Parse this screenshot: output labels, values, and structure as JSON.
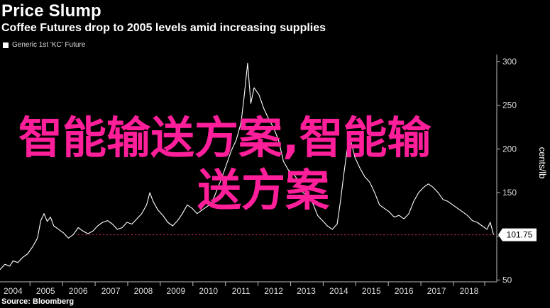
{
  "header": {
    "title": "Price Slump",
    "subtitle": "Coffee Futures drop to 2005 levels amid increasing supplies"
  },
  "source": "Source: Bloomberg",
  "watermark": {
    "line1": "智能输送方案,智能输",
    "line2": "送方案",
    "color": "#ff1f9a"
  },
  "chart_data": {
    "type": "line",
    "legend": {
      "position": "top-left",
      "entries": [
        "Generic 1st 'KC' Future"
      ]
    },
    "ylabel": "cents/lb",
    "ylim": [
      48,
      308
    ],
    "y_ticks": [
      50,
      100,
      150,
      200,
      250,
      300
    ],
    "y_tick_labels": [
      "50",
      "100",
      "150",
      "200",
      "250",
      "300"
    ],
    "x_ticks": [
      2004,
      2005,
      2006,
      2007,
      2008,
      2009,
      2010,
      2011,
      2012,
      2013,
      2014,
      2015,
      2016,
      2017,
      2018
    ],
    "x_tick_labels": [
      "2004",
      "2005",
      "2006",
      "2007",
      "2008",
      "2009",
      "2010",
      "2011",
      "2012",
      "2013",
      "2014",
      "2015",
      "2016",
      "2017",
      "2018"
    ],
    "xlim": [
      2003.6,
      2018.85
    ],
    "reference_line": {
      "value": 101.75,
      "style": "dashed",
      "color": "#e0335a"
    },
    "last_value_label": "101.75",
    "grid": false,
    "series": [
      {
        "name": "Generic 1st 'KC' Future",
        "color": "#ffffff",
        "x": [
          2003.6,
          2003.75,
          2003.9,
          2004.0,
          2004.15,
          2004.3,
          2004.45,
          2004.6,
          2004.75,
          2004.85,
          2004.95,
          2005.05,
          2005.15,
          2005.25,
          2005.4,
          2005.55,
          2005.7,
          2005.85,
          2006.0,
          2006.15,
          2006.3,
          2006.45,
          2006.6,
          2006.75,
          2006.9,
          2007.05,
          2007.2,
          2007.35,
          2007.5,
          2007.65,
          2007.8,
          2007.95,
          2008.1,
          2008.2,
          2008.3,
          2008.45,
          2008.6,
          2008.75,
          2008.9,
          2009.05,
          2009.2,
          2009.35,
          2009.5,
          2009.65,
          2009.8,
          2009.95,
          2010.1,
          2010.25,
          2010.4,
          2010.55,
          2010.7,
          2010.85,
          2011.0,
          2011.1,
          2011.2,
          2011.3,
          2011.4,
          2011.55,
          2011.7,
          2011.85,
          2012.0,
          2012.15,
          2012.3,
          2012.45,
          2012.6,
          2012.75,
          2012.9,
          2013.05,
          2013.2,
          2013.35,
          2013.5,
          2013.65,
          2013.8,
          2013.95,
          2014.05,
          2014.15,
          2014.25,
          2014.35,
          2014.5,
          2014.65,
          2014.8,
          2014.95,
          2015.1,
          2015.25,
          2015.4,
          2015.55,
          2015.7,
          2015.85,
          2016.0,
          2016.15,
          2016.3,
          2016.45,
          2016.6,
          2016.75,
          2016.9,
          2017.05,
          2017.2,
          2017.35,
          2017.5,
          2017.65,
          2017.8,
          2017.95,
          2018.1,
          2018.25,
          2018.4,
          2018.55,
          2018.65,
          2018.75
        ],
        "y": [
          62,
          68,
          66,
          72,
          70,
          76,
          80,
          88,
          98,
          118,
          126,
          117,
          122,
          112,
          108,
          104,
          98,
          102,
          110,
          106,
          103,
          106,
          112,
          116,
          118,
          114,
          108,
          110,
          116,
          114,
          120,
          126,
          136,
          150,
          140,
          130,
          124,
          116,
          112,
          118,
          126,
          136,
          132,
          126,
          130,
          134,
          138,
          152,
          166,
          182,
          198,
          210,
          230,
          262,
          298,
          252,
          270,
          262,
          246,
          234,
          224,
          210,
          186,
          176,
          172,
          164,
          150,
          146,
          138,
          124,
          118,
          112,
          108,
          114,
          140,
          170,
          198,
          212,
          190,
          178,
          168,
          162,
          150,
          136,
          132,
          128,
          122,
          124,
          120,
          126,
          140,
          150,
          156,
          160,
          156,
          150,
          142,
          140,
          136,
          132,
          128,
          124,
          118,
          116,
          112,
          108,
          116,
          102
        ]
      }
    ]
  }
}
